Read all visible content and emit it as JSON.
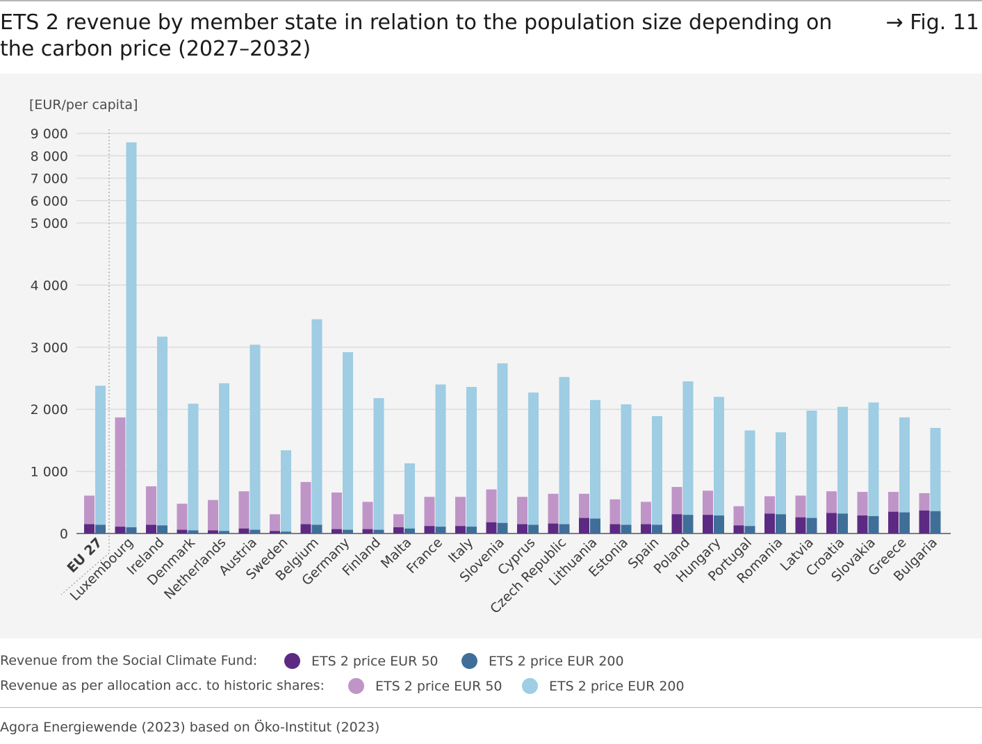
{
  "header": {
    "title": "ETS 2 revenue by member state in relation to the population size depending on the carbon price (2027–2032)",
    "figure_ref": "→ Fig. 11"
  },
  "legend": {
    "group1_label": "Revenue from the Social Climate Fund:",
    "group2_label": "Revenue as per allocation acc. to historic shares:",
    "item_scf_50": "ETS 2 price EUR 50",
    "item_scf_200": "ETS 2 price EUR 200",
    "item_hist_50": "ETS 2 price EUR 50",
    "item_hist_200": "ETS 2 price EUR 200"
  },
  "source": "Agora Energiewende (2023) based on Öko-Institut (2023)",
  "colors": {
    "scf_50": "#5c2a82",
    "scf_200": "#3f6f98",
    "hist_50": "#bf95c8",
    "hist_200": "#9ecde4"
  },
  "chart_data": {
    "type": "bar",
    "ylabel": "[EUR/per capita]",
    "y_ticks": [
      0,
      1000,
      2000,
      3000,
      4000,
      5000,
      6000,
      7000,
      8000,
      9000
    ],
    "y_tick_labels": [
      "0",
      "1 000",
      "2 000",
      "3 000",
      "4 000",
      "5 000",
      "6 000",
      "7 000",
      "8 000",
      "9 000"
    ],
    "y_scale_note": "axis compressed above 5 000",
    "categories": [
      "EU 27",
      "Luxembourg",
      "Ireland",
      "Denmark",
      "Netherlands",
      "Austria",
      "Sweden",
      "Belgium",
      "Germany",
      "Finland",
      "Malta",
      "France",
      "Italy",
      "Slovenia",
      "Cyprus",
      "Czech Republic",
      "Lithuania",
      "Estonia",
      "Spain",
      "Poland",
      "Hungary",
      "Portugal",
      "Romania",
      "Latvia",
      "Croatia",
      "Slovakia",
      "Greece",
      "Bulgaria"
    ],
    "series": [
      {
        "name": "Revenue as per allocation acc. to historic shares: ETS 2 price EUR 50",
        "values": [
          610,
          1870,
          760,
          480,
          540,
          680,
          310,
          830,
          660,
          510,
          310,
          590,
          590,
          710,
          590,
          640,
          640,
          550,
          510,
          750,
          690,
          440,
          600,
          610,
          680,
          670,
          670,
          650
        ]
      },
      {
        "name": "Revenue from the Social Climate Fund: ETS 2 price EUR 50",
        "values": [
          150,
          110,
          140,
          60,
          50,
          80,
          40,
          150,
          70,
          70,
          100,
          120,
          120,
          180,
          150,
          160,
          250,
          150,
          150,
          310,
          300,
          130,
          320,
          260,
          330,
          290,
          350,
          370
        ]
      },
      {
        "name": "Revenue as per allocation acc. to historic shares: ETS 2 price EUR 200",
        "values": [
          2380,
          8600,
          3170,
          2090,
          2420,
          3040,
          1340,
          3450,
          2920,
          2180,
          1130,
          2400,
          2360,
          2740,
          2270,
          2520,
          2150,
          2080,
          1890,
          2450,
          2200,
          1660,
          1630,
          1980,
          2040,
          2110,
          1870,
          1700
        ]
      },
      {
        "name": "Revenue from the Social Climate Fund: ETS 2 price EUR 200",
        "values": [
          140,
          100,
          130,
          50,
          40,
          60,
          30,
          140,
          60,
          60,
          80,
          110,
          110,
          170,
          140,
          150,
          240,
          140,
          140,
          300,
          290,
          120,
          310,
          250,
          320,
          280,
          340,
          360
        ]
      }
    ]
  }
}
